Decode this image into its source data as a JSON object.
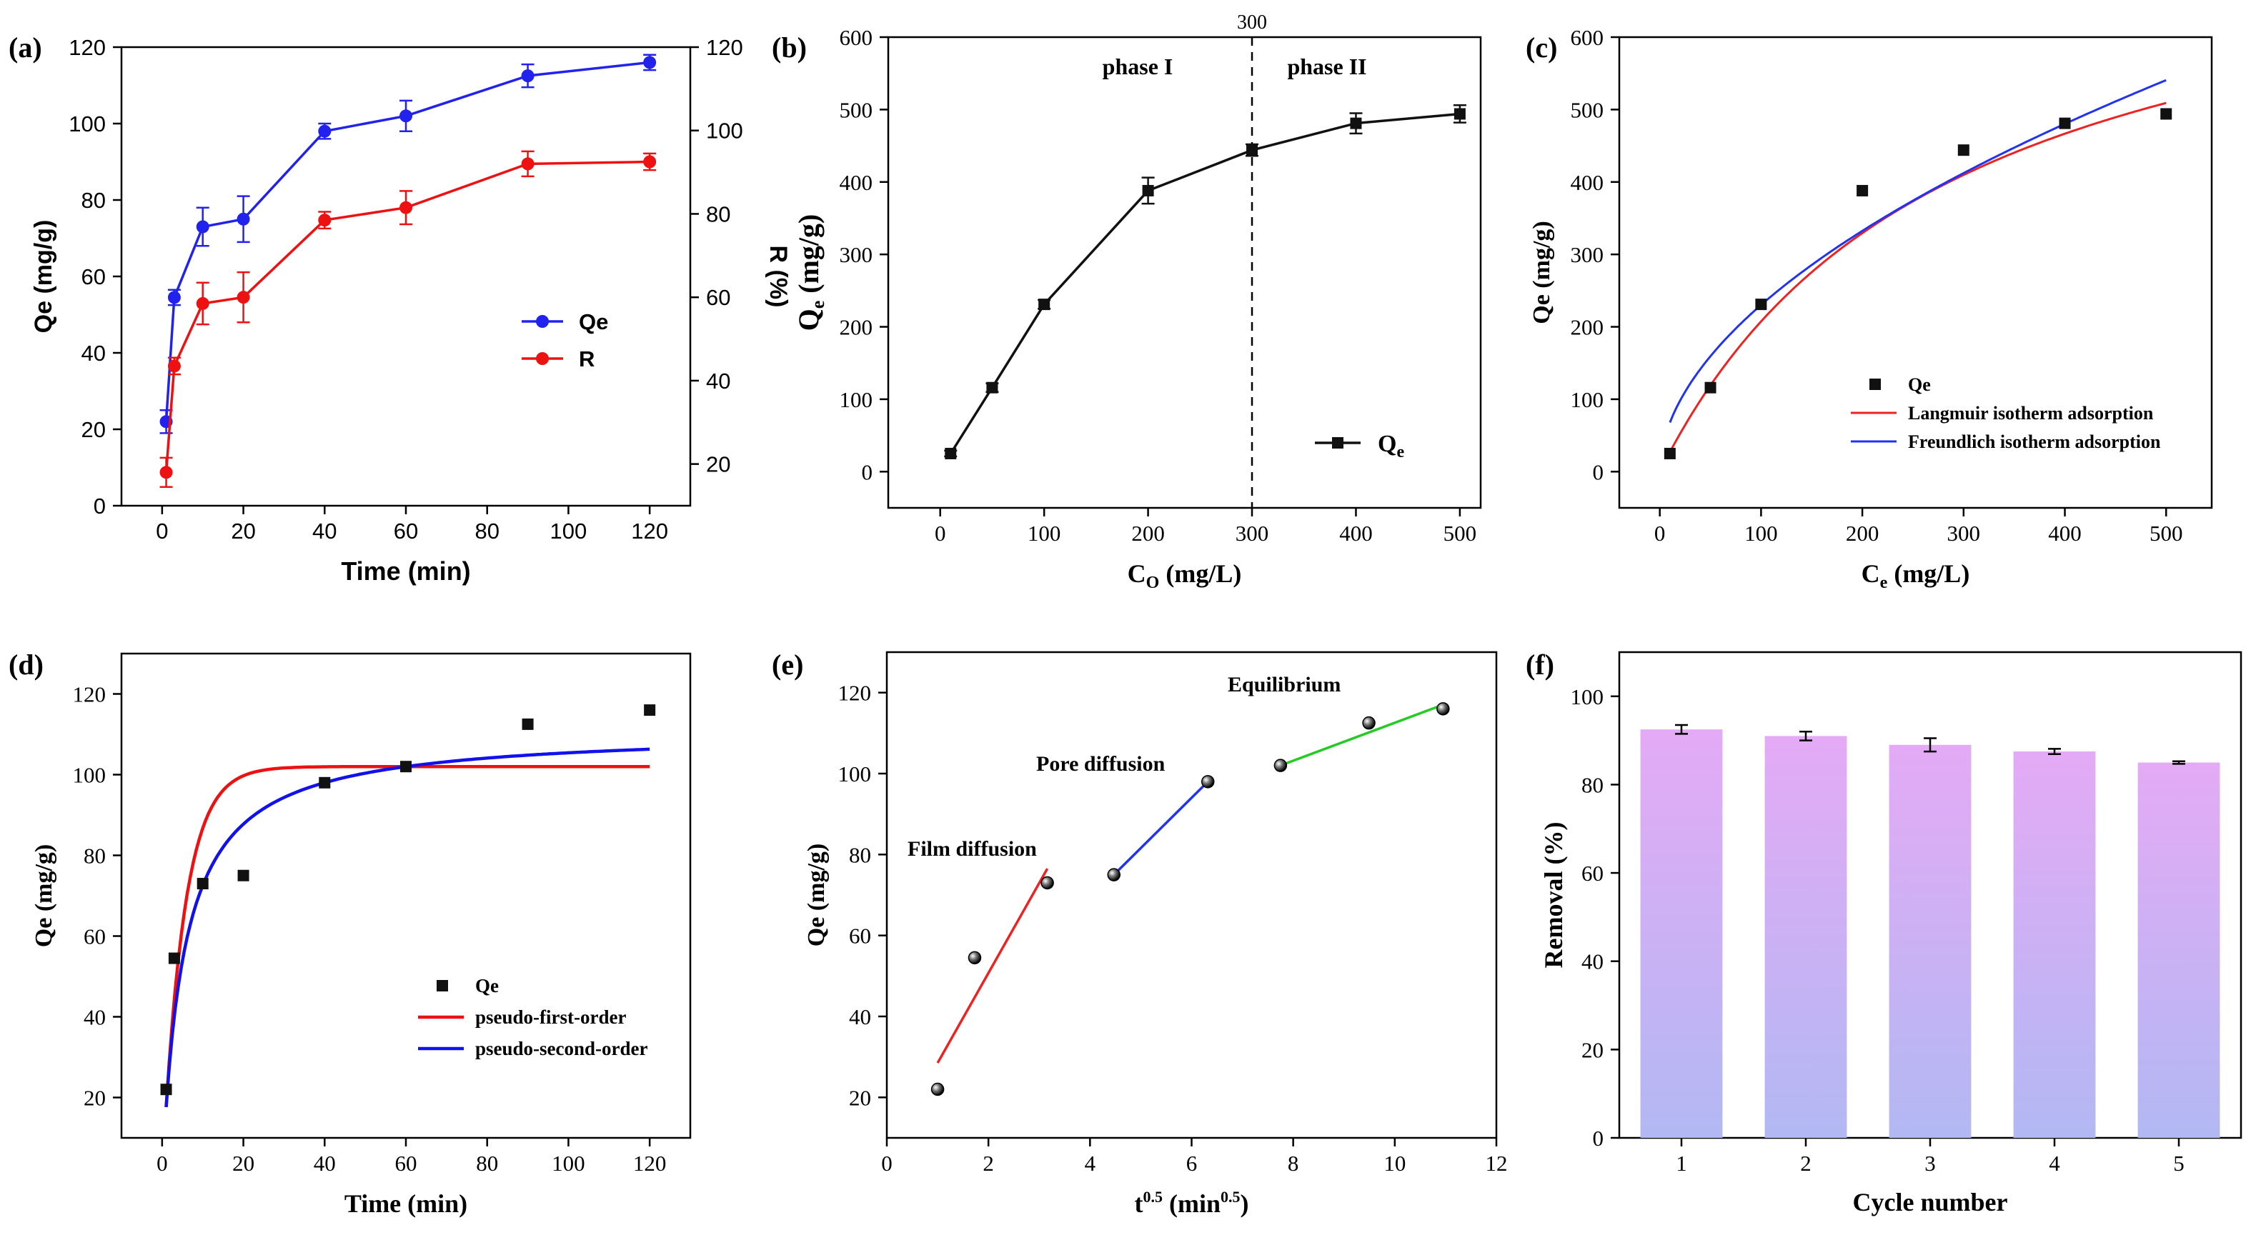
{
  "chart_data": [
    {
      "id": "a",
      "panel_label": "(a)",
      "type": "line",
      "font": "sans",
      "xlabel": "Time (min)",
      "ylabel": "Qe (mg/g)",
      "ylabel_right": "R (%)",
      "xlim": [
        -10,
        130
      ],
      "xticks": [
        0,
        20,
        40,
        60,
        80,
        100,
        120
      ],
      "ylim": [
        0,
        120
      ],
      "yticks": [
        0,
        20,
        40,
        60,
        80,
        100,
        120
      ],
      "ylim_right": [
        10,
        120
      ],
      "yticks_right": [
        20,
        40,
        60,
        80,
        100,
        120
      ],
      "legend_position": "center-right",
      "series": [
        {
          "name": "Qe",
          "color": "#2222ee",
          "marker": "circle",
          "axis": "left",
          "connect": true,
          "x": [
            1,
            3,
            10,
            20,
            40,
            60,
            90,
            120
          ],
          "y": [
            22,
            54.5,
            73,
            75,
            98,
            102,
            112.5,
            116
          ],
          "err": [
            3,
            2,
            5,
            6,
            2,
            4,
            3,
            2
          ]
        },
        {
          "name": "R",
          "color": "#ee1111",
          "marker": "circle",
          "axis": "right",
          "connect": true,
          "x": [
            1,
            3,
            10,
            20,
            40,
            60,
            90,
            120
          ],
          "y": [
            18,
            43.5,
            58.5,
            60,
            78.5,
            81.5,
            92,
            92.5
          ],
          "err": [
            3.5,
            2,
            5,
            6,
            2,
            4,
            3,
            2
          ]
        }
      ]
    },
    {
      "id": "b",
      "panel_label": "(b)",
      "type": "line",
      "font": "serif",
      "xlabel": "C",
      "xlabel_sub": "O",
      "xlabel_unit": " (mg/L)",
      "ylabel": "Q",
      "ylabel_sub": "e",
      "ylabel_unit": " (mg/g)",
      "xlim": [
        -50,
        520
      ],
      "xticks": [
        0,
        100,
        200,
        300,
        400,
        500
      ],
      "ylim": [
        -50,
        600
      ],
      "yticks": [
        0,
        100,
        200,
        300,
        400,
        500,
        600
      ],
      "legend_position": "lower-right",
      "vline_x": 300,
      "vline_label": "300",
      "phase_labels": [
        "phase  I",
        "phase II"
      ],
      "series": [
        {
          "name": "Q",
          "name_sub": "e",
          "color": "#111111",
          "marker": "square",
          "connect": true,
          "x": [
            10,
            50,
            100,
            200,
            300,
            400,
            500
          ],
          "y": [
            25,
            116,
            231,
            388,
            444,
            481,
            494
          ],
          "err": [
            4,
            6,
            6,
            18,
            8,
            14,
            12
          ]
        }
      ]
    },
    {
      "id": "c",
      "panel_label": "(c)",
      "type": "scatter",
      "font": "serif",
      "xlabel": "C",
      "xlabel_sub": "e",
      "xlabel_unit": " (mg/L)",
      "ylabel": "Qe (mg/g)",
      "xlim": [
        -40,
        545
      ],
      "xticks": [
        0,
        100,
        200,
        300,
        400,
        500
      ],
      "ylim": [
        -50,
        600
      ],
      "yticks": [
        0,
        100,
        200,
        300,
        400,
        500,
        600
      ],
      "legend_position": "lower-right",
      "series": [
        {
          "name": "Qe",
          "color": "#111111",
          "marker": "square",
          "x": [
            10,
            50,
            100,
            200,
            300,
            400,
            500
          ],
          "y": [
            25,
            116,
            231,
            388,
            444,
            481,
            494
          ]
        }
      ],
      "fits": [
        {
          "name": "Langmuir isotherm adsorption",
          "color": "#ee2222",
          "model": "langmuir",
          "params": {
            "qm": 800,
            "KL": 0.0035
          },
          "x_range": [
            10,
            500
          ]
        },
        {
          "name": "Freundlich isotherm adsorption",
          "color": "#2233ee",
          "model": "freundlich",
          "params": {
            "KF": 20,
            "n": 1.885
          },
          "x_range": [
            10,
            500
          ]
        }
      ]
    },
    {
      "id": "d",
      "panel_label": "(d)",
      "type": "scatter",
      "font": "serif",
      "xlabel": "Time (min)",
      "ylabel": "Qe (mg/g)",
      "xlim": [
        -10,
        130
      ],
      "xticks": [
        0,
        20,
        40,
        60,
        80,
        100,
        120
      ],
      "ylim": [
        10,
        130
      ],
      "yticks": [
        20,
        40,
        60,
        80,
        100,
        120
      ],
      "legend_position": "lower-right",
      "series": [
        {
          "name": "Qe",
          "color": "#111111",
          "marker": "square",
          "x": [
            1,
            3,
            10,
            20,
            40,
            60,
            90,
            120
          ],
          "y": [
            22,
            54.5,
            73,
            75,
            98,
            102,
            112.5,
            116
          ]
        }
      ],
      "fits": [
        {
          "name": "pseudo-first-order",
          "color": "#ee1111",
          "model": "pfo",
          "params": {
            "qe": 102,
            "k1": 0.19
          },
          "x_range": [
            1,
            120
          ]
        },
        {
          "name": "pseudo-second-order",
          "color": "#1111ee",
          "model": "pso",
          "params": {
            "qe": 111,
            "k2": 0.0017
          },
          "x_range": [
            1,
            120
          ]
        }
      ]
    },
    {
      "id": "e",
      "panel_label": "(e)",
      "type": "scatter",
      "font": "serif",
      "xlabel": "t",
      "xlabel_sup": "0.5",
      "xlabel_unit": " (min",
      "xlabel_unit_sup": "0.5",
      "xlabel_tail": ")",
      "ylabel": "Qe (mg/g)",
      "xlim": [
        0,
        12
      ],
      "xticks": [
        0,
        2,
        4,
        6,
        8,
        10,
        12
      ],
      "ylim": [
        10,
        130
      ],
      "yticks": [
        20,
        40,
        60,
        80,
        100,
        120
      ],
      "series": [
        {
          "name": "Qe",
          "color": "#111111",
          "marker": "sphere",
          "x": [
            1,
            1.73,
            3.16,
            4.47,
            6.32,
            7.75,
            9.49,
            10.95
          ],
          "y": [
            22,
            54.5,
            73,
            75,
            98,
            102,
            112.5,
            116
          ]
        }
      ],
      "segments": [
        {
          "name": "Film diffusion",
          "color": "#ee2222",
          "x": [
            1,
            3.16
          ],
          "y": [
            28.5,
            76.5
          ]
        },
        {
          "name": "Pore diffusion",
          "color": "#2233ee",
          "x": [
            4.47,
            6.32
          ],
          "y": [
            75,
            98
          ]
        },
        {
          "name": "Equilibrium",
          "color": "#22cc22",
          "x": [
            7.75,
            10.95
          ],
          "y": [
            102,
            117
          ]
        }
      ]
    },
    {
      "id": "f",
      "panel_label": "(f)",
      "type": "bar",
      "font": "serif",
      "xlabel": "Cycle number",
      "ylabel": "Removal (%)",
      "categories": [
        "1",
        "2",
        "3",
        "4",
        "5"
      ],
      "values": [
        92.5,
        91,
        89,
        87.5,
        85
      ],
      "err": [
        1,
        1,
        1.5,
        0.6,
        0.3
      ],
      "ylim": [
        0,
        110
      ],
      "yticks": [
        0,
        20,
        40,
        60,
        80,
        100
      ],
      "bar_color_top": "#e4aaf5",
      "bar_color_bottom": "#b2b8f3"
    }
  ]
}
